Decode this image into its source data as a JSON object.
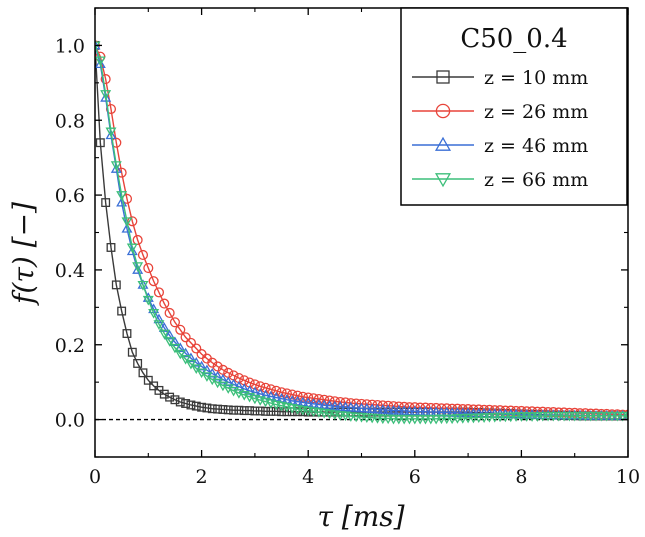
{
  "chart_data": {
    "type": "line",
    "title": "",
    "xlabel": "τ [ms]",
    "ylabel": "f(τ) [−]",
    "xlim": [
      0,
      10
    ],
    "ylim": [
      -0.1,
      1.1
    ],
    "x_ticks": [
      "0",
      "2",
      "4",
      "6",
      "8",
      "10"
    ],
    "x_tick_values": [
      0,
      2,
      4,
      6,
      8,
      10
    ],
    "y_ticks": [
      "0.0",
      "0.2",
      "0.4",
      "0.6",
      "0.8",
      "1.0"
    ],
    "y_tick_values": [
      0,
      0.2,
      0.4,
      0.6,
      0.8,
      1.0
    ],
    "grid": false,
    "reference_line": {
      "y": 0,
      "style": "dashed",
      "color": "#000000"
    },
    "legend": {
      "title": "C50_0.4",
      "placement": "top-right"
    },
    "x_step": 0.1,
    "series": [
      {
        "name": "z = 10 mm",
        "color": "#3a3a3a",
        "marker": "square",
        "values": [
          1.0,
          0.74,
          0.58,
          0.46,
          0.36,
          0.29,
          0.23,
          0.18,
          0.15,
          0.125,
          0.105,
          0.09,
          0.078,
          0.068,
          0.06,
          0.053,
          0.047,
          0.043,
          0.039,
          0.036,
          0.033,
          0.031,
          0.029,
          0.028,
          0.027,
          0.026,
          0.025,
          0.025,
          0.024,
          0.024,
          0.023,
          0.023,
          0.022,
          0.022,
          0.022,
          0.021,
          0.021,
          0.021,
          0.021,
          0.021,
          0.02,
          0.02,
          0.02,
          0.02,
          0.02,
          0.02,
          0.02,
          0.02,
          0.02,
          0.02,
          0.02,
          0.02,
          0.02,
          0.02,
          0.02,
          0.02,
          0.02,
          0.02,
          0.02,
          0.02,
          0.02,
          0.02,
          0.02,
          0.02,
          0.02,
          0.02,
          0.02,
          0.02,
          0.02,
          0.02,
          0.02,
          0.019,
          0.019,
          0.018,
          0.018,
          0.017,
          0.017,
          0.016,
          0.016,
          0.015,
          0.015,
          0.014,
          0.014,
          0.013,
          0.013,
          0.012,
          0.012,
          0.012,
          0.011,
          0.011,
          0.011,
          0.01,
          0.01,
          0.01,
          0.01,
          0.01,
          0.01,
          0.01,
          0.01,
          0.01,
          0.01
        ]
      },
      {
        "name": "z = 26 mm",
        "color": "#e8443a",
        "marker": "circle",
        "values": [
          1.0,
          0.97,
          0.91,
          0.83,
          0.74,
          0.66,
          0.59,
          0.53,
          0.48,
          0.44,
          0.405,
          0.37,
          0.34,
          0.31,
          0.285,
          0.26,
          0.24,
          0.22,
          0.205,
          0.19,
          0.175,
          0.163,
          0.152,
          0.142,
          0.133,
          0.125,
          0.118,
          0.111,
          0.105,
          0.099,
          0.094,
          0.089,
          0.085,
          0.081,
          0.077,
          0.073,
          0.07,
          0.067,
          0.064,
          0.061,
          0.059,
          0.057,
          0.055,
          0.053,
          0.051,
          0.049,
          0.047,
          0.046,
          0.044,
          0.043,
          0.042,
          0.041,
          0.04,
          0.039,
          0.038,
          0.037,
          0.036,
          0.035,
          0.034,
          0.033,
          0.033,
          0.032,
          0.032,
          0.031,
          0.031,
          0.03,
          0.03,
          0.029,
          0.029,
          0.028,
          0.028,
          0.027,
          0.027,
          0.026,
          0.026,
          0.025,
          0.025,
          0.024,
          0.024,
          0.023,
          0.023,
          0.022,
          0.022,
          0.021,
          0.021,
          0.02,
          0.02,
          0.019,
          0.019,
          0.018,
          0.018,
          0.017,
          0.017,
          0.016,
          0.016,
          0.015,
          0.015,
          0.014,
          0.014,
          0.013,
          0.013
        ]
      },
      {
        "name": "z = 46 mm",
        "color": "#3a6fd6",
        "marker": "triangle-up",
        "values": [
          1.0,
          0.95,
          0.86,
          0.76,
          0.67,
          0.58,
          0.51,
          0.45,
          0.4,
          0.36,
          0.325,
          0.295,
          0.268,
          0.245,
          0.225,
          0.207,
          0.191,
          0.177,
          0.164,
          0.152,
          0.142,
          0.132,
          0.123,
          0.115,
          0.107,
          0.1,
          0.094,
          0.088,
          0.082,
          0.077,
          0.073,
          0.069,
          0.065,
          0.062,
          0.059,
          0.056,
          0.053,
          0.05,
          0.048,
          0.046,
          0.044,
          0.042,
          0.04,
          0.038,
          0.037,
          0.035,
          0.034,
          0.033,
          0.032,
          0.031,
          0.03,
          0.029,
          0.028,
          0.027,
          0.026,
          0.025,
          0.024,
          0.024,
          0.023,
          0.022,
          0.022,
          0.021,
          0.021,
          0.02,
          0.02,
          0.019,
          0.019,
          0.018,
          0.018,
          0.017,
          0.017,
          0.016,
          0.016,
          0.016,
          0.015,
          0.015,
          0.015,
          0.014,
          0.014,
          0.014,
          0.013,
          0.013,
          0.013,
          0.012,
          0.012,
          0.012,
          0.012,
          0.011,
          0.011,
          0.011,
          0.011,
          0.011,
          0.01,
          0.01,
          0.01,
          0.01,
          0.01,
          0.01,
          0.01,
          0.01,
          0.01
        ]
      },
      {
        "name": "z = 66 mm",
        "color": "#3cbf7a",
        "marker": "triangle-down",
        "values": [
          1.0,
          0.96,
          0.87,
          0.77,
          0.68,
          0.6,
          0.53,
          0.46,
          0.41,
          0.36,
          0.32,
          0.285,
          0.255,
          0.23,
          0.21,
          0.192,
          0.176,
          0.162,
          0.149,
          0.137,
          0.126,
          0.116,
          0.107,
          0.099,
          0.091,
          0.084,
          0.077,
          0.071,
          0.066,
          0.061,
          0.056,
          0.052,
          0.048,
          0.044,
          0.04,
          0.037,
          0.034,
          0.031,
          0.028,
          0.026,
          0.024,
          0.022,
          0.02,
          0.018,
          0.016,
          0.014,
          0.012,
          0.011,
          0.009,
          0.008,
          0.007,
          0.006,
          0.005,
          0.004,
          0.003,
          0.003,
          0.002,
          0.002,
          0.002,
          0.002,
          0.002,
          0.002,
          0.002,
          0.002,
          0.002,
          0.003,
          0.003,
          0.003,
          0.004,
          0.004,
          0.005,
          0.005,
          0.006,
          0.006,
          0.007,
          0.007,
          0.008,
          0.008,
          0.008,
          0.009,
          0.009,
          0.009,
          0.009,
          0.009,
          0.01,
          0.01,
          0.01,
          0.01,
          0.01,
          0.01,
          0.01,
          0.01,
          0.01,
          0.01,
          0.01,
          0.01,
          0.01,
          0.01,
          0.01,
          0.01,
          0.01
        ]
      }
    ]
  }
}
